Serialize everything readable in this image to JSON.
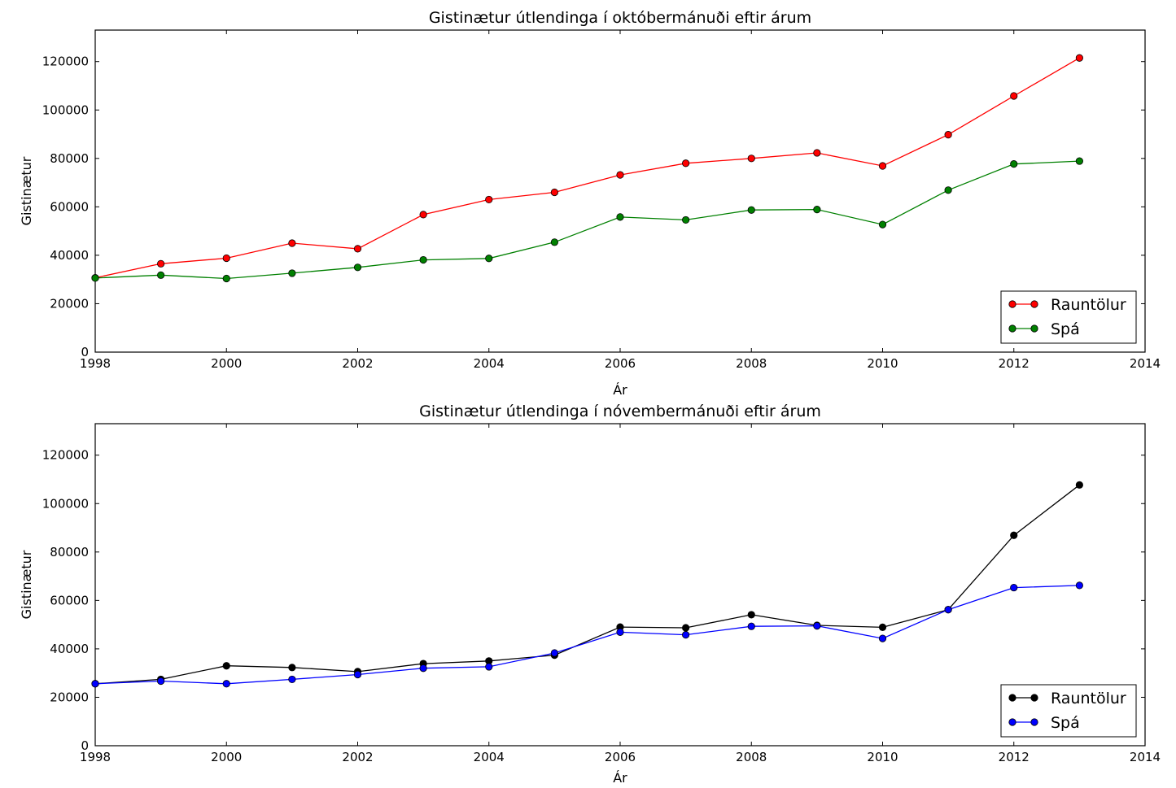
{
  "chart_data": [
    {
      "type": "line",
      "title": "Gistinætur útlendinga í októbermánuði eftir árum",
      "xlabel": "Ár",
      "ylabel": "Gistinætur",
      "xlim": [
        1998,
        2014
      ],
      "ylim": [
        0,
        133000
      ],
      "xticks": [
        1998,
        2000,
        2002,
        2004,
        2006,
        2008,
        2010,
        2012,
        2014
      ],
      "yticks": [
        0,
        20000,
        40000,
        60000,
        80000,
        100000,
        120000
      ],
      "grid": false,
      "legend_position": "lower right",
      "x": [
        1998,
        1999,
        2000,
        2001,
        2002,
        2003,
        2004,
        2005,
        2006,
        2007,
        2008,
        2009,
        2010,
        2011,
        2012,
        2013
      ],
      "series": [
        {
          "name": "Rauntölur",
          "color": "#ff0000",
          "values": [
            30700,
            36500,
            38800,
            45000,
            42700,
            56800,
            63000,
            66000,
            73200,
            78000,
            80000,
            82300,
            76900,
            89800,
            105800,
            121500
          ]
        },
        {
          "name": "Spá",
          "color": "#008000",
          "values": [
            30600,
            31800,
            30400,
            32600,
            35000,
            38100,
            38700,
            45400,
            55800,
            54600,
            58700,
            58900,
            52700,
            66900,
            77700,
            78900
          ]
        }
      ]
    },
    {
      "type": "line",
      "title": "Gistinætur útlendinga í nóvembermánuði eftir árum",
      "xlabel": "Ár",
      "ylabel": "Gistinætur",
      "xlim": [
        1998,
        2014
      ],
      "ylim": [
        0,
        133000
      ],
      "xticks": [
        1998,
        2000,
        2002,
        2004,
        2006,
        2008,
        2010,
        2012,
        2014
      ],
      "yticks": [
        0,
        20000,
        40000,
        60000,
        80000,
        100000,
        120000
      ],
      "grid": false,
      "legend_position": "lower right",
      "x": [
        1998,
        1999,
        2000,
        2001,
        2002,
        2003,
        2004,
        2005,
        2006,
        2007,
        2008,
        2009,
        2010,
        2011,
        2012,
        2013
      ],
      "series": [
        {
          "name": "Rauntölur",
          "color": "#000000",
          "values": [
            25600,
            27400,
            33000,
            32300,
            30600,
            33900,
            35000,
            37400,
            49000,
            48700,
            54100,
            49700,
            48900,
            56200,
            86900,
            107700
          ]
        },
        {
          "name": "Spá",
          "color": "#0000ff",
          "values": [
            25600,
            26700,
            25600,
            27400,
            29400,
            32000,
            32600,
            38300,
            46900,
            45800,
            49300,
            49500,
            44300,
            56200,
            65300,
            66200
          ]
        }
      ]
    }
  ]
}
